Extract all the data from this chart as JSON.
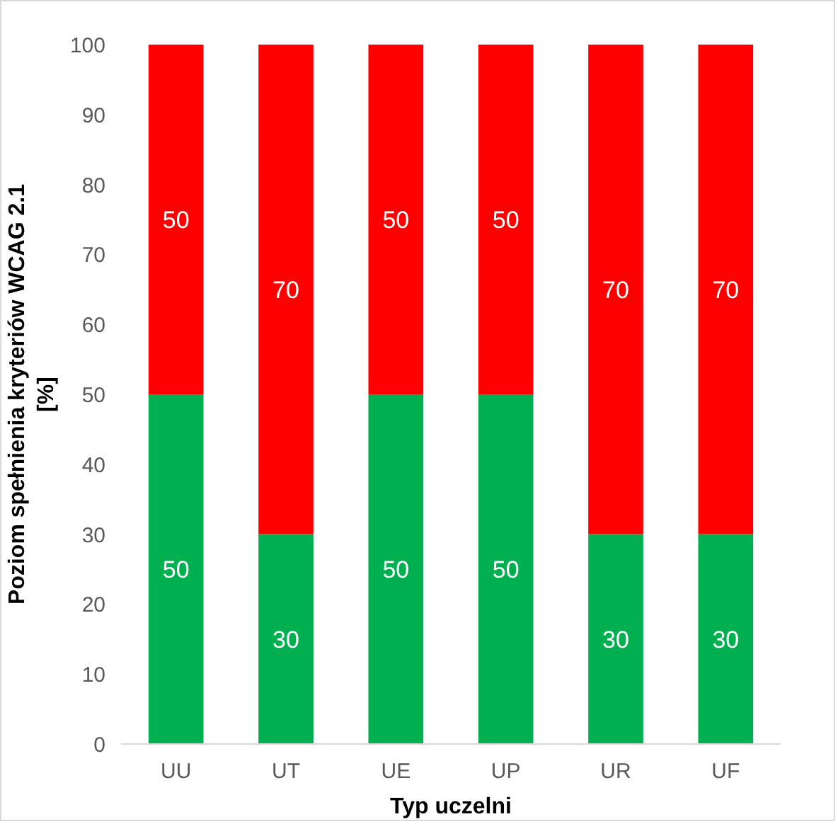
{
  "chart_data": {
    "type": "bar",
    "stacked": true,
    "xlabel": "Typ uczelni",
    "ylabel": "Poziom spełnienia kryteriów WCAG 2.1 [%]",
    "categories": [
      "UU",
      "UT",
      "UE",
      "UP",
      "UR",
      "UF"
    ],
    "series": [
      {
        "color": "#00b050",
        "values": [
          50,
          30,
          50,
          50,
          30,
          30
        ]
      },
      {
        "color": "#ff0000",
        "values": [
          50,
          70,
          50,
          50,
          70,
          70
        ]
      }
    ],
    "ylim": [
      0,
      100
    ],
    "yticks": [
      0,
      10,
      20,
      30,
      40,
      50,
      60,
      70,
      80,
      90,
      100
    ],
    "data_labels": true
  }
}
